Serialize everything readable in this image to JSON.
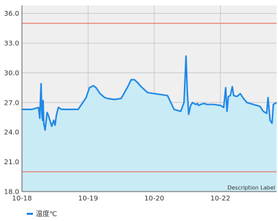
{
  "chart_data": {
    "type": "area",
    "y_ticks": [
      18.0,
      21.0,
      24.0,
      27.0,
      30.0,
      33.0,
      36.0
    ],
    "y_tick_labels": [
      "18.0",
      "21.0",
      "24.0",
      "27.0",
      "30.0",
      "33.0",
      "36.0"
    ],
    "ylim": [
      18.0,
      36.8
    ],
    "x_tick_labels": [
      "10-18",
      "10-19",
      "10-20",
      "10-22"
    ],
    "x_tick_positions": [
      0,
      1,
      2,
      3
    ],
    "xlim": [
      0,
      3.85
    ],
    "limit_lines": [
      35.0,
      20.0
    ],
    "description_label": "Description Label",
    "grid": true,
    "legend_position": "bottom-left",
    "series": [
      {
        "name": "温度℃",
        "x": [
          0,
          0.15,
          0.25,
          0.27,
          0.28,
          0.29,
          0.3,
          0.31,
          0.32,
          0.33,
          0.35,
          0.38,
          0.4,
          0.45,
          0.48,
          0.5,
          0.52,
          0.55,
          0.6,
          0.7,
          0.85,
          0.97,
          1.02,
          1.08,
          1.12,
          1.18,
          1.25,
          1.3,
          1.4,
          1.5,
          1.6,
          1.65,
          1.7,
          1.75,
          1.8,
          1.85,
          1.9,
          2.0,
          2.1,
          2.2,
          2.3,
          2.4,
          2.45,
          2.48,
          2.5,
          2.52,
          2.55,
          2.58,
          2.6,
          2.63,
          2.65,
          2.67,
          2.7,
          2.75,
          2.8,
          2.9,
          3.0,
          3.05,
          3.08,
          3.1,
          3.12,
          3.15,
          3.18,
          3.2,
          3.25,
          3.3,
          3.35,
          3.4,
          3.5,
          3.6,
          3.65,
          3.7,
          3.72,
          3.75,
          3.78,
          3.8,
          3.85
        ],
        "y": [
          26.3,
          26.3,
          26.5,
          25.4,
          27.5,
          28.9,
          26.0,
          25.2,
          27.2,
          24.9,
          24.2,
          26.0,
          25.7,
          24.6,
          25.2,
          24.7,
          25.7,
          26.5,
          26.3,
          26.3,
          26.3,
          27.5,
          28.5,
          28.7,
          28.5,
          27.9,
          27.5,
          27.4,
          27.3,
          27.4,
          28.6,
          29.3,
          29.3,
          29.0,
          28.6,
          28.3,
          28.0,
          27.9,
          27.8,
          27.7,
          26.3,
          26.1,
          27.0,
          31.7,
          28.0,
          25.8,
          26.7,
          27.0,
          26.9,
          26.8,
          26.9,
          26.7,
          26.8,
          26.9,
          26.8,
          26.8,
          26.7,
          26.5,
          28.5,
          26.1,
          27.6,
          27.7,
          28.6,
          27.7,
          27.6,
          27.9,
          27.4,
          27.0,
          26.8,
          26.6,
          26.1,
          25.9,
          27.5,
          25.2,
          24.9,
          26.8,
          27.0
        ]
      }
    ]
  },
  "colors": {
    "line": "#1e88e5",
    "fill": "#c9ebf6",
    "plot_bg": "#efefef",
    "limit": "#e57e6f",
    "grid": "#c8c8c8"
  }
}
